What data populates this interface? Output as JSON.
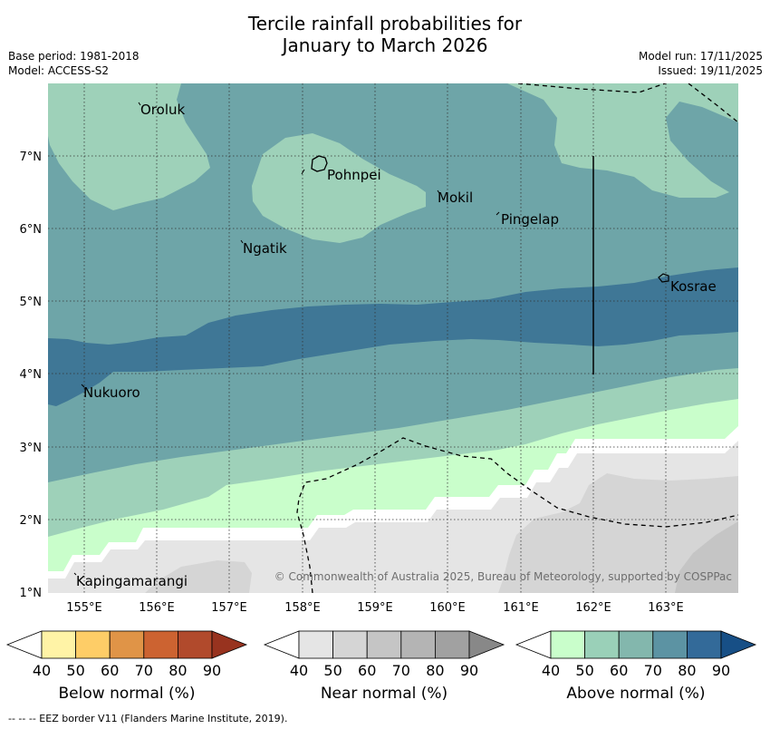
{
  "title": {
    "line1": "Tercile rainfall probabilities for",
    "line2": "January to March 2026"
  },
  "meta": {
    "base_period": "Base period: 1981-2018",
    "model": "Model: ACCESS-S2",
    "model_run": "Model run: 17/11/2025",
    "issued": "Issued: 19/11/2025"
  },
  "map": {
    "lon_labels": [
      "155°E",
      "156°E",
      "157°E",
      "158°E",
      "159°E",
      "160°E",
      "161°E",
      "162°E",
      "163°E"
    ],
    "lat_labels": [
      "7°N",
      "6°N",
      "5°N",
      "4°N",
      "3°N",
      "2°N",
      "1°N"
    ],
    "places": {
      "oroluk": "Oroluk",
      "pohnpei": "Pohnpei",
      "mokil": "Mokil",
      "pingelap": "Pingelap",
      "ngatik": "Ngatik",
      "kosrae": "Kosrae",
      "nukuoro": "Nukuoro",
      "kapingamarangi": "Kapingamarangi"
    },
    "copyright": "© Commonwealth of Australia 2025, Bureau of Meteorology, supported by COSPPac"
  },
  "colorbars": {
    "ticks": [
      "40",
      "50",
      "60",
      "70",
      "80",
      "90"
    ],
    "below": {
      "label": "Below normal (%)",
      "colors": [
        "#fff3a6",
        "#fecd67",
        "#e09447",
        "#cc6331",
        "#b14a2c",
        "#98331f"
      ]
    },
    "near": {
      "label": "Near normal (%)",
      "colors": [
        "#e5e5e5",
        "#d5d5d5",
        "#c5c5c5",
        "#b4b4b4",
        "#a1a1a1",
        "#888888"
      ]
    },
    "above": {
      "label": "Above normal (%)",
      "colors": [
        "#c9fecb",
        "#9ad0b8",
        "#83b7ad",
        "#5c93a3",
        "#336a99",
        "#174f86"
      ]
    }
  },
  "footnote": "-- -- -- EEZ border V11 (Flanders Marine Institute, 2019)."
}
